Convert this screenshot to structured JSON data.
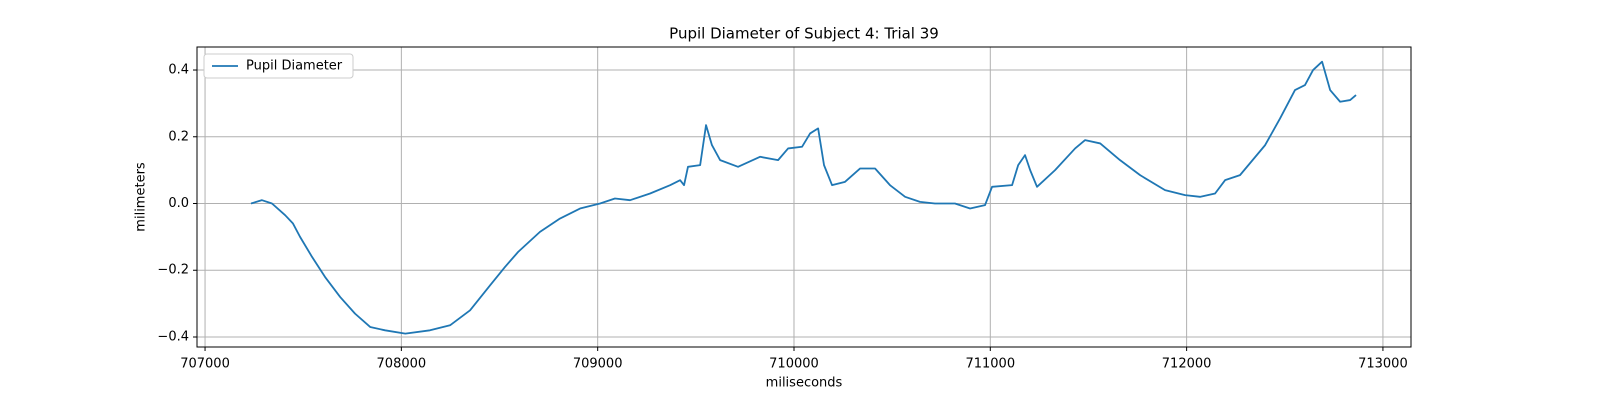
{
  "chart_data": {
    "type": "line",
    "title": "Pupil Diameter of Subject 4: Trial 39",
    "x_label": "miliseconds",
    "y_label": "milimeters",
    "x": [
      707234,
      707290,
      707341,
      707408,
      707448,
      707484,
      707545,
      707611,
      707688,
      707764,
      707841,
      707917,
      708020,
      708146,
      708248,
      708350,
      708452,
      708528,
      708595,
      708706,
      708808,
      708910,
      709012,
      709088,
      709165,
      709267,
      709369,
      709420,
      709440,
      709460,
      709522,
      709552,
      709582,
      709624,
      709715,
      709827,
      709919,
      709970,
      710041,
      710082,
      710123,
      710153,
      710194,
      710260,
      710337,
      710413,
      710489,
      710566,
      710642,
      710718,
      710820,
      710897,
      710973,
      711009,
      711111,
      711142,
      711177,
      711203,
      711238,
      711330,
      711432,
      711483,
      711560,
      711661,
      711763,
      711890,
      711992,
      712068,
      712145,
      712196,
      712272,
      712400,
      712476,
      712552,
      712603,
      712644,
      712690,
      712731,
      712782,
      712833,
      712863
    ],
    "series": [
      {
        "name": "Pupil Diameter",
        "color": "#1f77b4",
        "values": [
          0.0,
          0.01,
          0.0,
          -0.035,
          -0.06,
          -0.1,
          -0.16,
          -0.22,
          -0.28,
          -0.33,
          -0.37,
          -0.38,
          -0.39,
          -0.38,
          -0.365,
          -0.32,
          -0.245,
          -0.19,
          -0.145,
          -0.085,
          -0.045,
          -0.015,
          0.0,
          0.015,
          0.01,
          0.03,
          0.055,
          0.07,
          0.055,
          0.11,
          0.115,
          0.235,
          0.175,
          0.13,
          0.11,
          0.14,
          0.13,
          0.165,
          0.17,
          0.21,
          0.225,
          0.115,
          0.055,
          0.065,
          0.105,
          0.105,
          0.055,
          0.02,
          0.005,
          0.0,
          0.0,
          -0.015,
          -0.005,
          0.05,
          0.055,
          0.115,
          0.145,
          0.1,
          0.05,
          0.1,
          0.165,
          0.19,
          0.18,
          0.13,
          0.085,
          0.04,
          0.025,
          0.02,
          0.03,
          0.07,
          0.085,
          0.175,
          0.255,
          0.34,
          0.355,
          0.4,
          0.425,
          0.34,
          0.305,
          0.31,
          0.325
        ]
      }
    ],
    "xlim": [
      706959,
      713143
    ],
    "xticks": [
      707000,
      708000,
      709000,
      710000,
      711000,
      712000,
      713000
    ],
    "ylim": [
      -0.43,
      0.469
    ],
    "yticks": [
      {
        "value": -0.4,
        "label": "−0.4"
      },
      {
        "value": -0.2,
        "label": "−0.2"
      },
      {
        "value": 0,
        "label": "0.0"
      },
      {
        "value": 0.2,
        "label": "0.2"
      },
      {
        "value": 0.4,
        "label": "0.4"
      }
    ],
    "grid": true,
    "legend": "upper left"
  }
}
